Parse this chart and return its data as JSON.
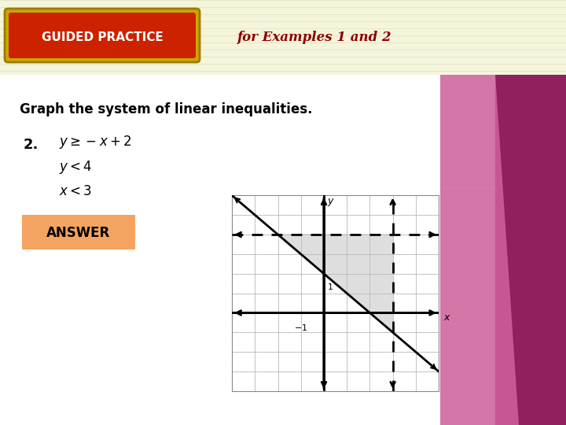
{
  "bg_stripe_color": "#F5F5DC",
  "header_stripe_color": "#F5F5DC",
  "white_area_color": "#FFFFFF",
  "guided_practice_label": "GUIDED PRACTICE",
  "guided_practice_bg": "#CC2200",
  "guided_practice_border": "#8B6000",
  "guided_practice_fg": "#FFFFFF",
  "for_examples_text": "for Examples 1 and 2",
  "for_examples_color": "#8B0000",
  "main_text": "Graph the system of linear inequalities.",
  "number_label": "2.",
  "answer_label": "ANSWER",
  "answer_bg": "#F4A460",
  "graph_xlim": [
    -4,
    5
  ],
  "graph_ylim": [
    -4,
    6
  ],
  "shaded_color": "#BEBEBE",
  "shaded_alpha": 0.5,
  "line_color": "#000000",
  "pink1_color": "#E080B0",
  "pink2_color": "#C03070",
  "pink3_color": "#901050",
  "pink_light": "#F0B0D0"
}
